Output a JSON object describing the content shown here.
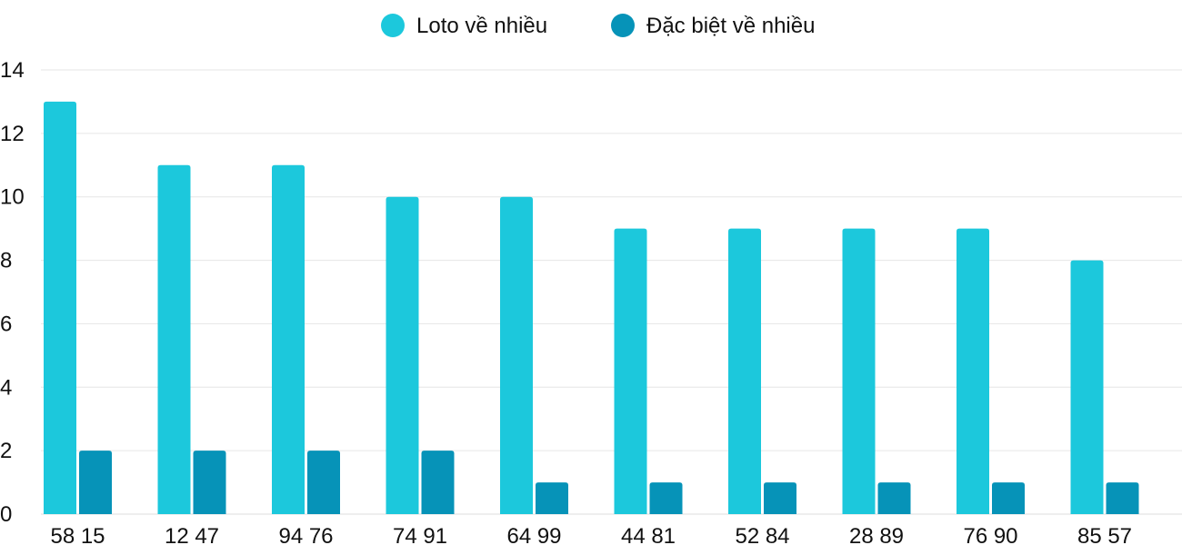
{
  "chart_data": {
    "type": "bar",
    "categories": [
      "58 15",
      "12 47",
      "94 76",
      "74 91",
      "64 99",
      "44 81",
      "52 84",
      "28 89",
      "76 90",
      "85 57"
    ],
    "series": [
      {
        "name": "Loto về nhiều",
        "color": "#1cc8dc",
        "values": [
          13,
          11,
          11,
          10,
          10,
          9,
          9,
          9,
          9,
          8
        ]
      },
      {
        "name": "Đặc biệt về nhiều",
        "color": "#0693b8",
        "values": [
          2,
          2,
          2,
          2,
          1,
          1,
          1,
          1,
          1,
          1
        ]
      }
    ],
    "ylim": [
      0,
      14
    ],
    "yticks": [
      0,
      2,
      4,
      6,
      8,
      10,
      12,
      14
    ],
    "grid": true,
    "legend_position": "top-center"
  }
}
